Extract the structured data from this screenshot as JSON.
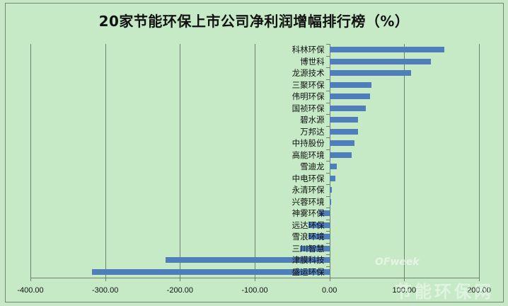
{
  "chart_data": {
    "type": "bar",
    "orientation": "horizontal",
    "title": "20家节能环保上市公司净利润增幅排行榜（%）",
    "xlabel": "",
    "ylabel": "",
    "xlim": [
      -400,
      200
    ],
    "x_ticks": [
      "-400.00",
      "-300.00",
      "-200.00",
      "-100.00",
      "0.00",
      "100.00",
      "200.00"
    ],
    "grid": "vertical major gridlines",
    "legend": "none",
    "categories": [
      "科林环保",
      "博世科",
      "龙源技术",
      "三聚环保",
      "伟明环保",
      "国祯环保",
      "碧水源",
      "万邦达",
      "中持股份",
      "高能环境",
      "雪迪龙",
      "中电环保",
      "永清环保",
      "兴蓉环境",
      "神雾环保",
      "远达环保",
      "雪浪环境",
      "三川智慧",
      "津膜科技",
      "盛运环保"
    ],
    "values": [
      154,
      136,
      109,
      56,
      54,
      49,
      38,
      38,
      33,
      30,
      10,
      8,
      3,
      2,
      -14,
      -28,
      -28,
      -39,
      -219,
      -318
    ],
    "bar_color": "#4f7fba"
  },
  "watermark": {
    "brand": "OFweek",
    "site": "节能环保网"
  }
}
